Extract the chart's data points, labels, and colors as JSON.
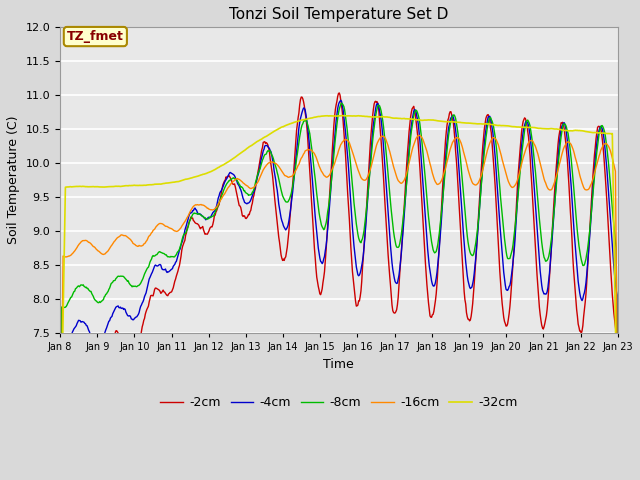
{
  "title": "Tonzi Soil Temperature Set D",
  "xlabel": "Time",
  "ylabel": "Soil Temperature (C)",
  "ylim": [
    7.5,
    12.0
  ],
  "yticks": [
    7.5,
    8.0,
    8.5,
    9.0,
    9.5,
    10.0,
    10.5,
    11.0,
    11.5,
    12.0
  ],
  "legend_label": "TZ_fmet",
  "series_labels": [
    "-2cm",
    "-4cm",
    "-8cm",
    "-16cm",
    "-32cm"
  ],
  "series_colors": [
    "#cc0000",
    "#0000cc",
    "#00bb00",
    "#ff8800",
    "#dddd00"
  ],
  "line_widths": [
    1.0,
    1.0,
    1.0,
    1.0,
    1.2
  ],
  "fig_bg_color": "#d9d9d9",
  "plot_bg_color": "#e8e8e8",
  "grid_color": "#ffffff",
  "xtick_labels": [
    "Jan 8",
    "Jan 9",
    "Jan 10",
    "Jan 11",
    "Jan 12",
    "Jan 13",
    "Jan 14",
    "Jan 15",
    "Jan 16",
    "Jan 17",
    "Jan 18",
    "Jan 19",
    "Jan 20",
    "Jan 21",
    "Jan 22",
    "Jan 23"
  ],
  "n_points": 720
}
